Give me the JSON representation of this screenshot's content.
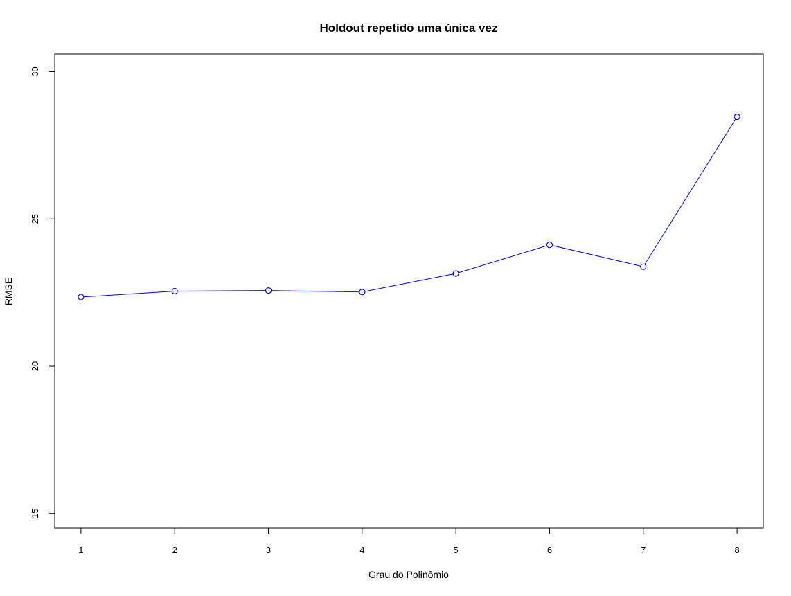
{
  "chart_data": {
    "type": "line",
    "title": "Holdout repetido uma única vez",
    "xlabel": "Grau do Polinômio",
    "ylabel": "RMSE",
    "x": [
      1,
      2,
      3,
      4,
      5,
      6,
      7,
      8
    ],
    "series": [
      {
        "values": [
          22.35,
          22.55,
          22.57,
          22.52,
          23.15,
          24.12,
          23.38,
          28.47
        ]
      }
    ],
    "x_ticks": [
      "1",
      "2",
      "3",
      "4",
      "5",
      "6",
      "7",
      "8"
    ],
    "y_ticks": [
      "15",
      "20",
      "25",
      "30"
    ],
    "xlim": [
      0.72,
      8.28
    ],
    "ylim": [
      14.5,
      30.6
    ],
    "grid": false,
    "markers": "open-circle",
    "colors": {
      "series": "#0000ff",
      "axes": "#000000"
    }
  }
}
